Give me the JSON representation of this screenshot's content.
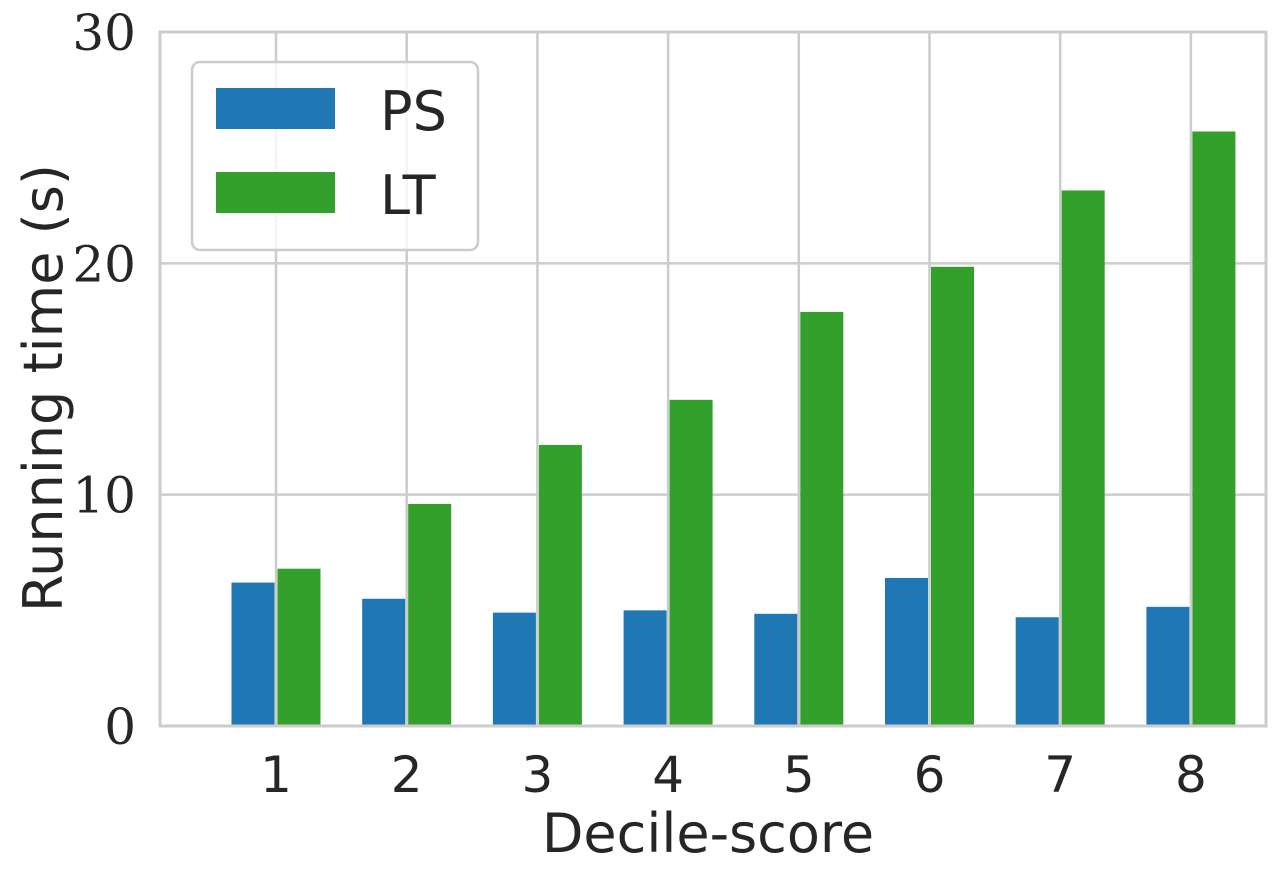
{
  "chart_data": {
    "type": "bar",
    "title": "",
    "xlabel": "Decile-score",
    "ylabel": "Running time (s)",
    "categories": [
      "1",
      "2",
      "3",
      "4",
      "5",
      "6",
      "7",
      "8"
    ],
    "series": [
      {
        "name": "PS",
        "color": "#1f77b4",
        "values": [
          6.2,
          5.5,
          4.9,
          5.0,
          4.85,
          6.4,
          4.7,
          5.15
        ]
      },
      {
        "name": "LT",
        "color": "#33a02c",
        "values": [
          6.8,
          9.6,
          12.15,
          14.1,
          17.9,
          19.85,
          23.15,
          25.7
        ]
      }
    ],
    "ylim": [
      0,
      30
    ],
    "yticks": [
      "0",
      "10",
      "20",
      "30"
    ],
    "grid": true,
    "legend_position": "top-left"
  }
}
